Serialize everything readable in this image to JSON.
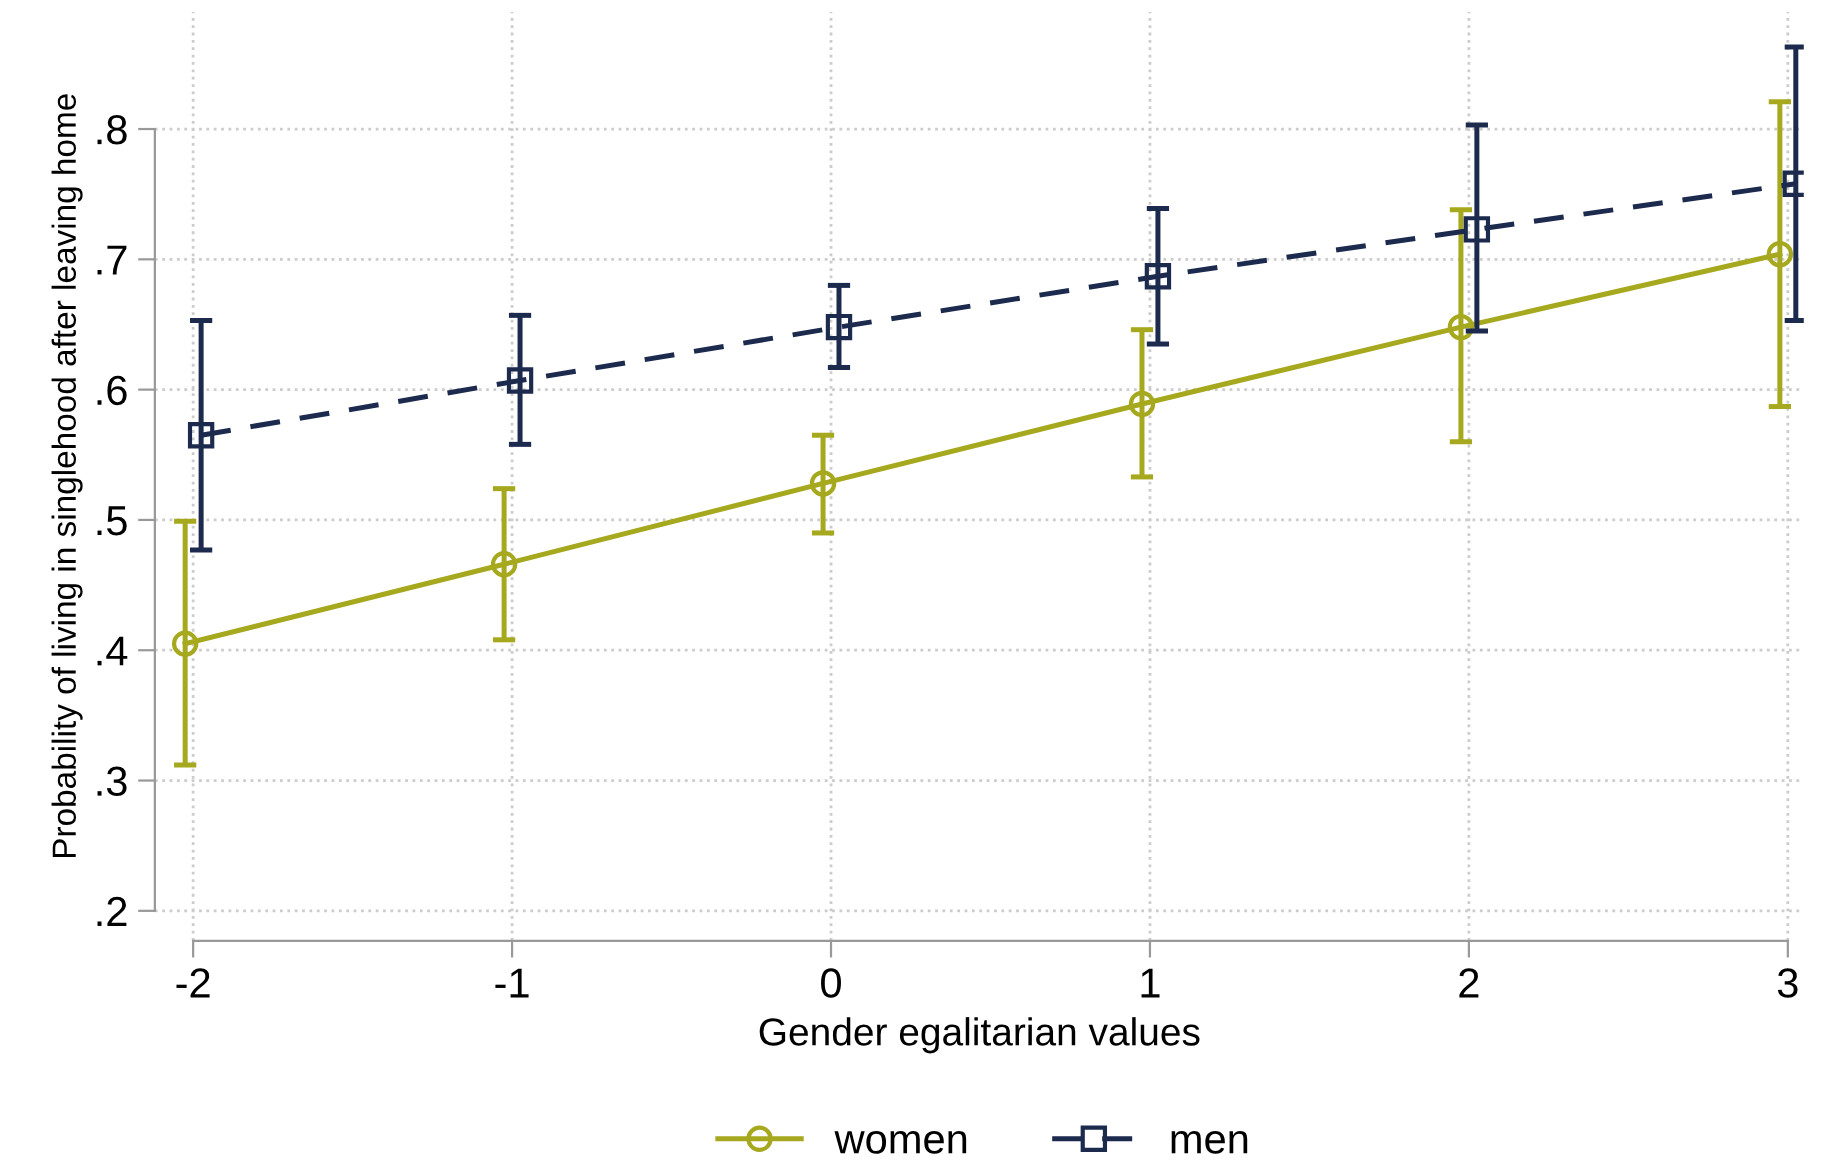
{
  "chart_data": {
    "type": "line",
    "xlabel": "Gender egalitarian values",
    "ylabel": "Probability of living in singlehood after leaving home",
    "xlim": [
      -2.12,
      3.05
    ],
    "ylim": [
      0.177,
      0.89
    ],
    "xticks": [
      {
        "value": -2,
        "label": "-2"
      },
      {
        "value": -1,
        "label": "-1"
      },
      {
        "value": 0,
        "label": "0"
      },
      {
        "value": 1,
        "label": "1"
      },
      {
        "value": 2,
        "label": "2"
      },
      {
        "value": 3,
        "label": "3"
      }
    ],
    "yticks": [
      {
        "value": 0.2,
        "label": ".2"
      },
      {
        "value": 0.3,
        "label": ".3"
      },
      {
        "value": 0.4,
        "label": ".4"
      },
      {
        "value": 0.5,
        "label": ".5"
      },
      {
        "value": 0.6,
        "label": ".6"
      },
      {
        "value": 0.7,
        "label": ".7"
      },
      {
        "value": 0.8,
        "label": ".8"
      }
    ],
    "grid": true,
    "legend": "bottom",
    "series": [
      {
        "name": "women",
        "color": "#a6a81e",
        "marker": "circle",
        "line_style": "solid",
        "x": [
          -2.025,
          -1.025,
          -0.025,
          0.975,
          1.975,
          2.975
        ],
        "values": [
          0.405,
          0.466,
          0.528,
          0.589,
          0.648,
          0.704
        ],
        "errors": [
          [
            0.312,
            0.499
          ],
          [
            0.408,
            0.524
          ],
          [
            0.49,
            0.565
          ],
          [
            0.533,
            0.646
          ],
          [
            0.56,
            0.738
          ],
          [
            0.587,
            0.821
          ]
        ]
      },
      {
        "name": "men",
        "color": "#1c2a4e",
        "marker": "square",
        "line_style": "dashed",
        "x": [
          -1.975,
          -0.975,
          0.025,
          1.025,
          2.025,
          3.025
        ],
        "values": [
          0.565,
          0.607,
          0.648,
          0.687,
          0.723,
          0.758
        ],
        "errors": [
          [
            0.477,
            0.653
          ],
          [
            0.558,
            0.657
          ],
          [
            0.617,
            0.68
          ],
          [
            0.635,
            0.739
          ],
          [
            0.645,
            0.803
          ],
          [
            0.653,
            0.863
          ]
        ]
      }
    ]
  }
}
